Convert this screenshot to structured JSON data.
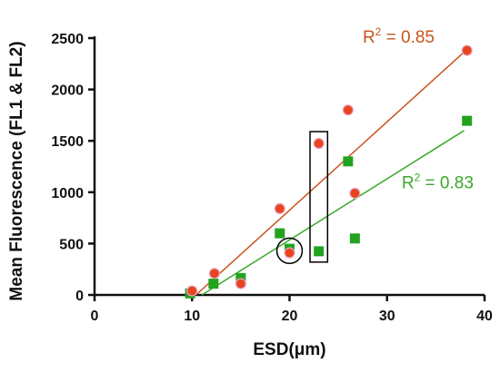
{
  "colors": {
    "series_fl1": "#e8451e",
    "series_fl2": "#22a31f",
    "trend_fl1": "#c8531c",
    "trend_fl2": "#3aa82a",
    "r2_fl1": "#c8531c",
    "r2_fl2": "#3aa82a",
    "highlight": "#000000"
  },
  "chart_data": {
    "type": "scatter",
    "title": "",
    "xlabel": "ESD(μm)",
    "ylabel": "Mean Fluorescence (FL1 & FL2)",
    "xlim": [
      0,
      40
    ],
    "ylim": [
      0,
      2500
    ],
    "x_ticks": [
      0,
      10,
      20,
      30,
      40
    ],
    "y_ticks": [
      0,
      500,
      1000,
      1500,
      2000,
      2500
    ],
    "grid": false,
    "series": [
      {
        "marker": "circle",
        "color_key": "series_fl1",
        "points": [
          [
            10,
            40
          ],
          [
            12.3,
            210
          ],
          [
            15,
            110
          ],
          [
            19,
            840
          ],
          [
            20,
            410
          ],
          [
            23,
            1475
          ],
          [
            26,
            1800
          ],
          [
            26.7,
            990
          ],
          [
            38.2,
            2380
          ]
        ],
        "trendline": {
          "from": [
            10.4,
            0
          ],
          "to": [
            38.2,
            2390
          ]
        },
        "r2": {
          "prefix": "R",
          "sup": "2",
          "value": " = 0.85",
          "anchor": [
            27.5,
            2455
          ]
        }
      },
      {
        "marker": "square",
        "color_key": "series_fl2",
        "points": [
          [
            9.8,
            15
          ],
          [
            12.2,
            110
          ],
          [
            15,
            165
          ],
          [
            19,
            600
          ],
          [
            20,
            450
          ],
          [
            23,
            425
          ],
          [
            26,
            1300
          ],
          [
            26.7,
            550
          ],
          [
            38.2,
            1695
          ]
        ],
        "trendline": {
          "from": [
            11,
            0
          ],
          "to": [
            37.9,
            1600
          ]
        },
        "r2": {
          "prefix": "R",
          "sup": "2",
          "value": " = 0.83",
          "anchor": [
            31.5,
            1040
          ]
        }
      }
    ],
    "annotations": [
      {
        "type": "circle",
        "center": [
          20,
          430
        ],
        "radius_units": 1.3
      },
      {
        "type": "rect",
        "x_range": [
          22.1,
          23.9
        ],
        "y_range": [
          320,
          1590
        ]
      }
    ]
  }
}
